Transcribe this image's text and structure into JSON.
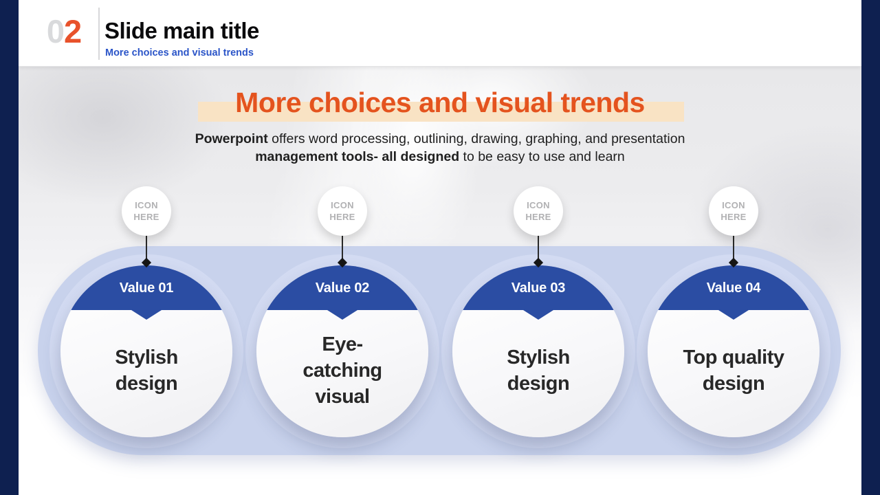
{
  "header": {
    "number_gray": "0",
    "number_orange": "2",
    "title": "Slide main title",
    "subtitle": "More choices and visual trends"
  },
  "main": {
    "title": "More choices and visual trends",
    "body": {
      "bold1": "Powerpoint",
      "text1": " offers word processing, outlining, drawing, graphing, and presentation",
      "bold2": "management tools- all designed",
      "text2": " to be easy to use and learn"
    },
    "circles": [
      {
        "icon_placeholder": "ICON\nHERE",
        "value_label": "Value 01",
        "text": "Stylish\ndesign"
      },
      {
        "icon_placeholder": "ICON\nHERE",
        "value_label": "Value 02",
        "text": "Eye-\ncatching\nvisual"
      },
      {
        "icon_placeholder": "ICON\nHERE",
        "value_label": "Value 03",
        "text": "Stylish\ndesign"
      },
      {
        "icon_placeholder": "ICON\nHERE",
        "value_label": "Value 04",
        "text": "Top quality\ndesign"
      }
    ]
  },
  "colors": {
    "navy_rail": "#0E2050",
    "header_number_orange": "#E8522B",
    "header_subtitle_blue": "#2B55C8",
    "section_title_orange": "#E4531E",
    "title_highlight_peach": "#F9E3C4",
    "value_banner_blue": "#2B4DA3",
    "band_lavender": "#C8D2EC"
  }
}
